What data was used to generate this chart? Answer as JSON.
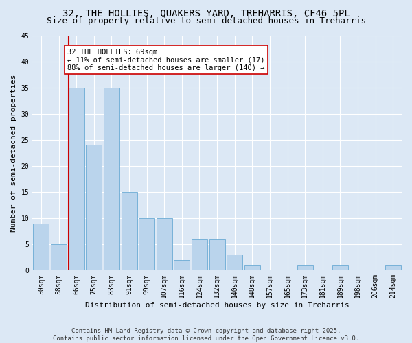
{
  "title": "32, THE HOLLIES, QUAKERS YARD, TREHARRIS, CF46 5PL",
  "subtitle": "Size of property relative to semi-detached houses in Treharris",
  "xlabel": "Distribution of semi-detached houses by size in Treharris",
  "ylabel": "Number of semi-detached properties",
  "categories": [
    "50sqm",
    "58sqm",
    "66sqm",
    "75sqm",
    "83sqm",
    "91sqm",
    "99sqm",
    "107sqm",
    "116sqm",
    "124sqm",
    "132sqm",
    "140sqm",
    "148sqm",
    "157sqm",
    "165sqm",
    "173sqm",
    "181sqm",
    "189sqm",
    "198sqm",
    "206sqm",
    "214sqm"
  ],
  "values": [
    9,
    5,
    35,
    24,
    35,
    15,
    10,
    10,
    2,
    6,
    6,
    3,
    1,
    0,
    0,
    1,
    0,
    1,
    0,
    0,
    1
  ],
  "bar_color": "#bad4ec",
  "bar_edge_color": "#6aaad4",
  "highlight_line_color": "#cc0000",
  "annotation_text": "32 THE HOLLIES: 69sqm\n← 11% of semi-detached houses are smaller (17)\n88% of semi-detached houses are larger (140) →",
  "annotation_box_color": "#ffffff",
  "annotation_box_edge": "#cc0000",
  "ylim": [
    0,
    45
  ],
  "yticks": [
    0,
    5,
    10,
    15,
    20,
    25,
    30,
    35,
    40,
    45
  ],
  "footer": "Contains HM Land Registry data © Crown copyright and database right 2025.\nContains public sector information licensed under the Open Government Licence v3.0.",
  "bg_color": "#dce8f5",
  "plot_bg_color": "#dce8f5",
  "grid_color": "#ffffff",
  "title_fontsize": 10,
  "subtitle_fontsize": 9,
  "tick_fontsize": 7,
  "ylabel_fontsize": 8,
  "xlabel_fontsize": 8,
  "footer_fontsize": 6.5,
  "annotation_fontsize": 7.5
}
